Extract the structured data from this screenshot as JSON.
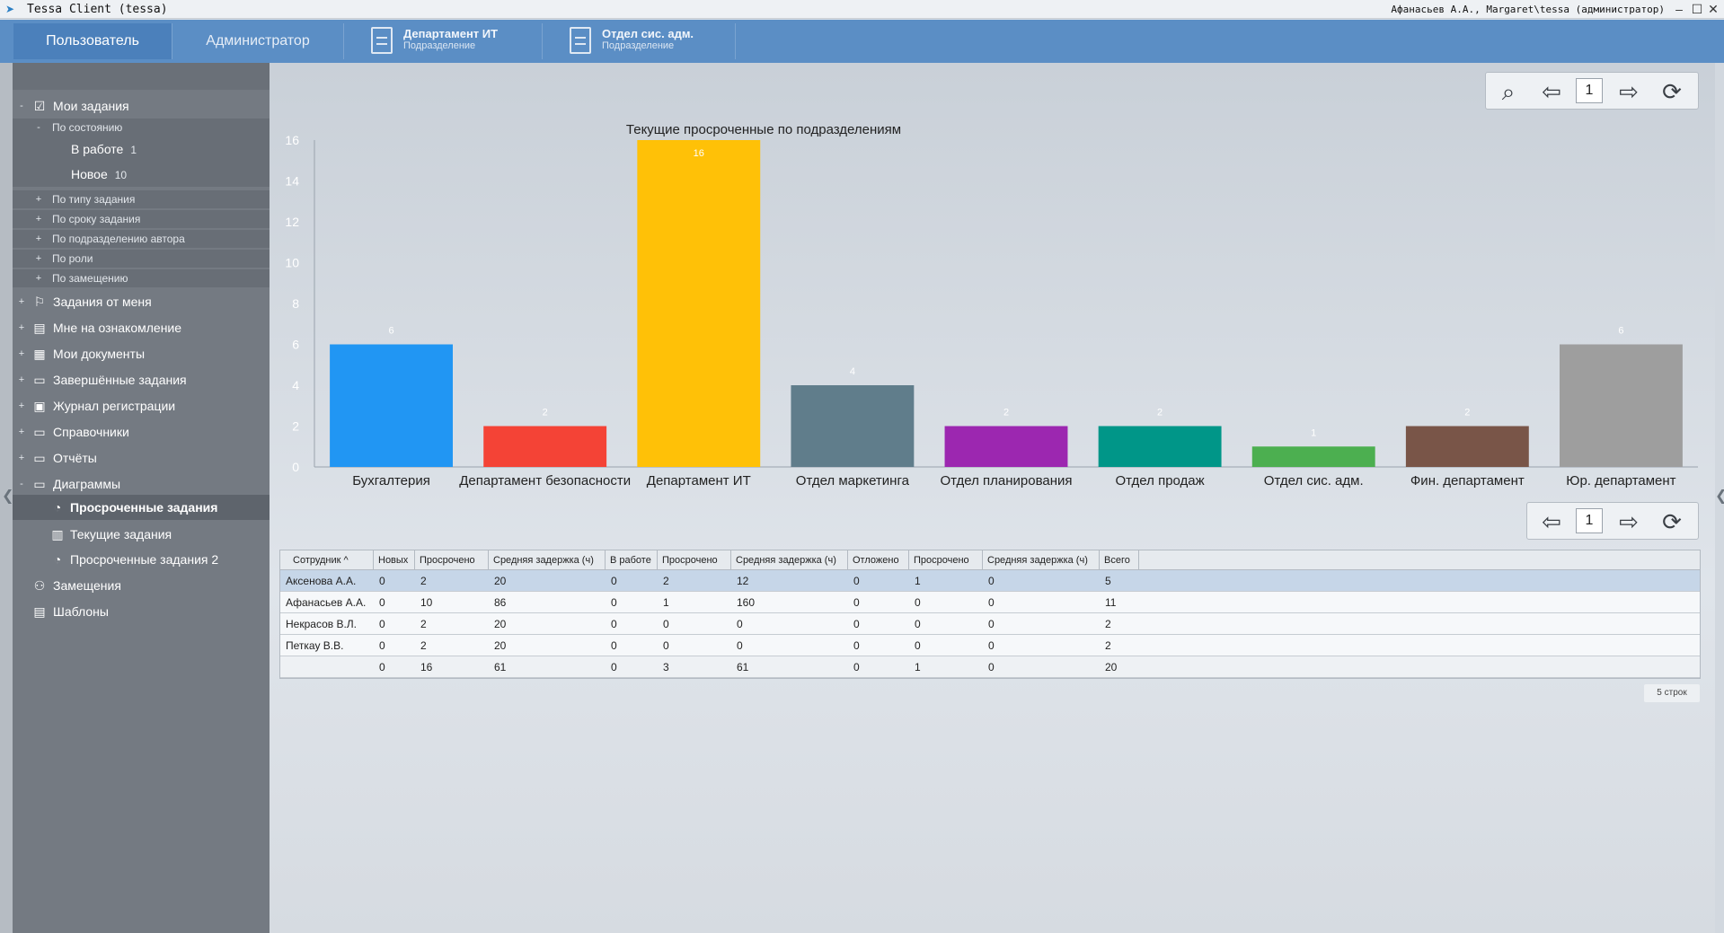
{
  "window": {
    "title": "Tessa Client (tessa)",
    "user": "Афанасьев А.А., Margaret\\tessa (администратор)"
  },
  "tabs": {
    "user": "Пользователь",
    "admin": "Администратор",
    "cards": [
      {
        "title": "Департамент ИТ",
        "subtitle": "Подразделение"
      },
      {
        "title": "Отдел сис. адм.",
        "subtitle": "Подразделение"
      }
    ]
  },
  "sidebar": {
    "items": [
      {
        "label": "Мои задания",
        "exp": "-",
        "icon": "task-check-icon"
      },
      {
        "label": "По состоянию",
        "exp": "-"
      },
      {
        "label": "В работе",
        "count": "1"
      },
      {
        "label": "Новое",
        "count": "10"
      },
      {
        "label": "По типу задания",
        "exp": "+"
      },
      {
        "label": "По сроку задания",
        "exp": "+"
      },
      {
        "label": "По подразделению автора",
        "exp": "+"
      },
      {
        "label": "По роли",
        "exp": "+"
      },
      {
        "label": "По замещению",
        "exp": "+"
      },
      {
        "label": "Задания от меня",
        "exp": "+",
        "icon": "signpost-icon"
      },
      {
        "label": "Мне на ознакомление",
        "exp": "+",
        "icon": "document-eye-icon"
      },
      {
        "label": "Мои документы",
        "exp": "+",
        "icon": "documents-icon"
      },
      {
        "label": "Завершённые задания",
        "exp": "+",
        "icon": "folder-icon"
      },
      {
        "label": "Журнал регистрации",
        "exp": "+",
        "icon": "register-icon"
      },
      {
        "label": "Справочники",
        "exp": "+",
        "icon": "folder-icon"
      },
      {
        "label": "Отчёты",
        "exp": "+",
        "icon": "folder-icon"
      },
      {
        "label": "Диаграммы",
        "exp": "-",
        "icon": "folder-open-icon"
      },
      {
        "label": "Просроченные задания",
        "icon": "pie-chart-icon"
      },
      {
        "label": "Текущие задания",
        "icon": "bar-chart-icon"
      },
      {
        "label": "Просроченные задания 2",
        "icon": "pie-chart-icon"
      },
      {
        "label": "Замещения",
        "icon": "users-icon"
      },
      {
        "label": "Шаблоны",
        "icon": "template-icon"
      }
    ]
  },
  "toolbar": {
    "page": "1",
    "page2": "1"
  },
  "chart_data": {
    "type": "bar",
    "title": "Текущие просроченные по подразделениям",
    "categories": [
      "Бухгалтерия",
      "Департамент безопасности",
      "Департамент ИТ",
      "Отдел маркетинга",
      "Отдел планирования",
      "Отдел продаж",
      "Отдел сис. адм.",
      "Фин. департамент",
      "Юр. департамент"
    ],
    "values": [
      6,
      2,
      16,
      4,
      2,
      2,
      1,
      2,
      6
    ],
    "colors": [
      "#2196f3",
      "#f44336",
      "#ffc107",
      "#607d8b",
      "#9c27b0",
      "#009688",
      "#4caf50",
      "#795548",
      "#9e9e9e"
    ],
    "yticks": [
      0,
      2,
      4,
      6,
      8,
      10,
      12,
      14,
      16
    ],
    "ylim": [
      0,
      16
    ],
    "xlabel": "",
    "ylabel": "",
    "legend": "none"
  },
  "table": {
    "columns": [
      "Сотрудник",
      "Новых",
      "Просрочено",
      "Средняя задержка (ч)",
      "В работе",
      "Просрочено",
      "Средняя задержка (ч)",
      "Отложено",
      "Просрочено",
      "Средняя задержка (ч)",
      "Всего"
    ],
    "rows": [
      [
        "Аксенова А.А.",
        "0",
        "2",
        "20",
        "0",
        "2",
        "12",
        "0",
        "1",
        "0",
        "5"
      ],
      [
        "Афанасьев А.А.",
        "0",
        "10",
        "86",
        "0",
        "1",
        "160",
        "0",
        "0",
        "0",
        "11"
      ],
      [
        "Некрасов В.Л.",
        "0",
        "2",
        "20",
        "0",
        "0",
        "0",
        "0",
        "0",
        "0",
        "2"
      ],
      [
        "Петкау В.В.",
        "0",
        "2",
        "20",
        "0",
        "0",
        "0",
        "0",
        "0",
        "0",
        "2"
      ],
      [
        "",
        "0",
        "16",
        "61",
        "0",
        "3",
        "61",
        "0",
        "1",
        "0",
        "20"
      ]
    ],
    "row_count": "5 строк"
  }
}
